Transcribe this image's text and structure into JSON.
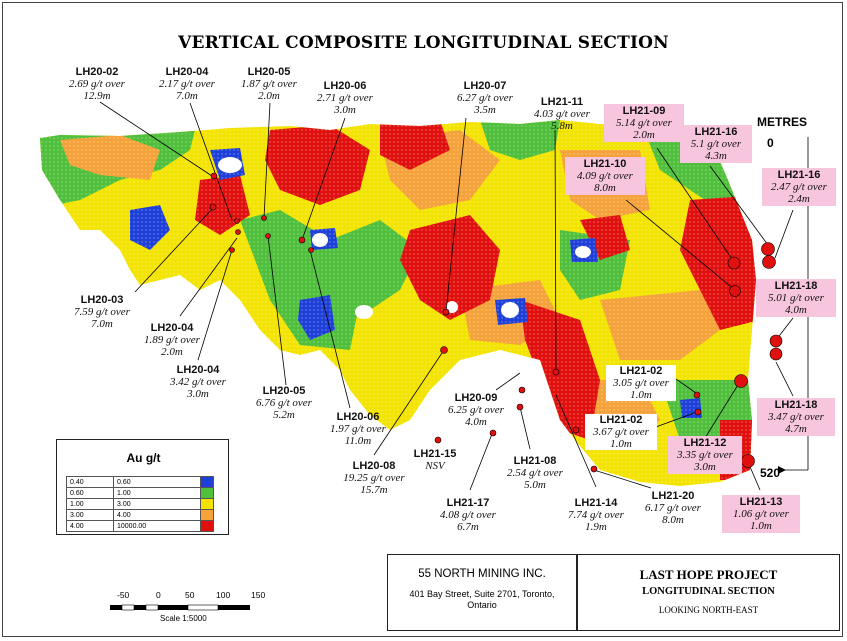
{
  "title": "VERTICAL COMPOSITE LONGITUDINAL SECTION",
  "colors": {
    "blue": "#1e3fd8",
    "green": "#4fbf3c",
    "yellow": "#f3e400",
    "orange": "#f5a23a",
    "red": "#e0100f",
    "pink_box": "#f7c5de"
  },
  "intercepts": [
    {
      "hole": "LH20-02",
      "grade": "2.69 g/t over",
      "width": "12.9m"
    },
    {
      "hole": "LH20-04",
      "grade": "2.17 g/t over",
      "width": "7.0m"
    },
    {
      "hole": "LH20-05",
      "grade": "1.87 g/t over",
      "width": "2.0m"
    },
    {
      "hole": "LH20-06",
      "grade": "2.71 g/t over",
      "width": "3.0m"
    },
    {
      "hole": "LH20-07",
      "grade": "6.27 g/t over",
      "width": "3.5m"
    },
    {
      "hole": "LH21-11",
      "grade": "4.03 g/t over",
      "width": "5.8m"
    },
    {
      "hole": "LH21-09",
      "grade": "5.14 g/t over",
      "width": "2.0m"
    },
    {
      "hole": "LH21-16",
      "grade": "5.1 g/t over",
      "width": "4.3m"
    },
    {
      "hole": "LH21-10",
      "grade": "4.09 g/t over",
      "width": "8.0m"
    },
    {
      "hole": "LH21-16",
      "grade": "2.47 g/t over",
      "width": "2.4m"
    },
    {
      "hole": "LH21-18",
      "grade": "5.01 g/t over",
      "width": "4.0m"
    },
    {
      "hole": "LH20-03",
      "grade": "7.59 g/t over",
      "width": "7.0m"
    },
    {
      "hole": "LH20-04",
      "grade": "1.89 g/t over",
      "width": "2.0m"
    },
    {
      "hole": "LH20-04",
      "grade": "3.42 g/t over",
      "width": "3.0m"
    },
    {
      "hole": "LH20-05",
      "grade": "6.76 g/t over",
      "width": "5.2m"
    },
    {
      "hole": "LH20-06",
      "grade": "1.97 g/t over",
      "width": "11.0m"
    },
    {
      "hole": "LH20-08",
      "grade": "19.25 g/t over",
      "width": "15.7m"
    },
    {
      "hole": "LH20-09",
      "grade": "6.25 g/t over",
      "width": "4.0m"
    },
    {
      "hole": "LH21-15",
      "grade": "NSV",
      "width": ""
    },
    {
      "hole": "LH21-17",
      "grade": "4.08 g/t over",
      "width": "6.7m"
    },
    {
      "hole": "LH21-08",
      "grade": "2.54 g/t over",
      "width": "5.0m"
    },
    {
      "hole": "LH21-14",
      "grade": "7.74 g/t over",
      "width": "1.9m"
    },
    {
      "hole": "LH21-20",
      "grade": "6.17 g/t over",
      "width": "8.0m"
    },
    {
      "hole": "LH21-02",
      "grade": "3.05 g/t over",
      "width": "1.0m"
    },
    {
      "hole": "LH21-02",
      "grade": "3.67 g/t over",
      "width": "1.0m"
    },
    {
      "hole": "LH21-12",
      "grade": "3.35 g/t over",
      "width": "3.0m"
    },
    {
      "hole": "LH21-18",
      "grade": "3.47 g/t over",
      "width": "4.7m"
    },
    {
      "hole": "LH21-13",
      "grade": "1.06 g/t over",
      "width": "1.0m"
    }
  ],
  "metres": {
    "label": "METRES",
    "top": "0",
    "bottom": "520"
  },
  "legend": {
    "title": "Au g/t",
    "rows": [
      {
        "lo": "0.40",
        "hi": "0.60",
        "color": "#1e3fd8"
      },
      {
        "lo": "0.60",
        "hi": "1.00",
        "color": "#4fbf3c"
      },
      {
        "lo": "1.00",
        "hi": "3.00",
        "color": "#f3e400"
      },
      {
        "lo": "3.00",
        "hi": "4.00",
        "color": "#f5a23a"
      },
      {
        "lo": "4.00",
        "hi": "10000.00",
        "color": "#e0100f"
      }
    ]
  },
  "scale": {
    "ticks": [
      "-50",
      "0",
      "50",
      "100",
      "150"
    ],
    "text": "Scale 1:5000"
  },
  "company": {
    "name": "55 NORTH MINING INC.",
    "address_1": "401 Bay Street, Suite 2701, Toronto,",
    "address_2": "Ontario"
  },
  "project": {
    "name": "LAST HOPE PROJECT",
    "subtitle": "LONGITUDINAL SECTION",
    "view": "LOOKING NORTH-EAST"
  }
}
